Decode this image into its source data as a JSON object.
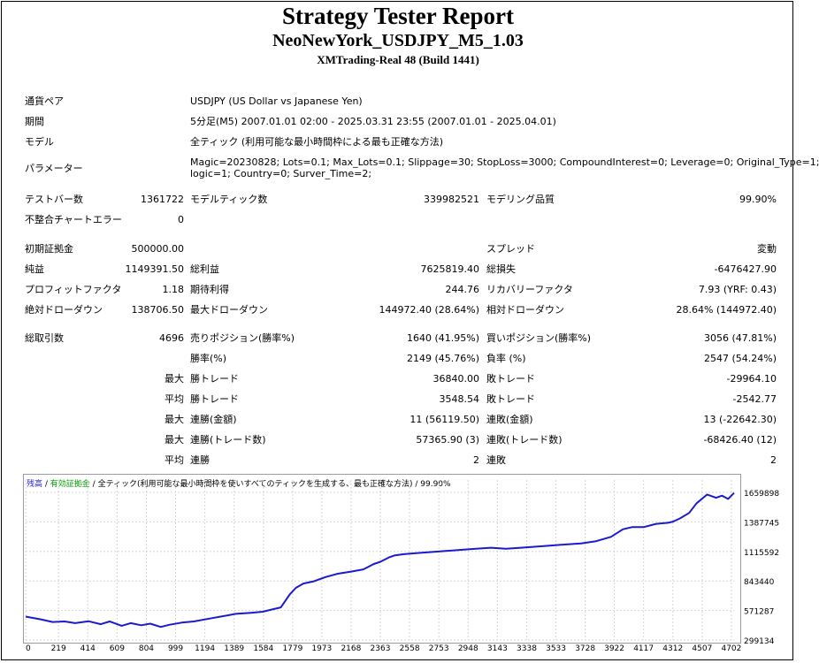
{
  "header": {
    "title": "Strategy Tester Report",
    "ea_name": "NeoNewYork_USDJPY_M5_1.03",
    "server": "XMTrading-Real 48 (Build 1441)"
  },
  "settings": {
    "symbol_label": "通貨ペア",
    "symbol_value": "USDJPY (US Dollar vs Japanese Yen)",
    "period_label": "期間",
    "period_value": "5分足(M5) 2007.01.01 02:00 - 2025.03.31 23:55 (2007.01.01 - 2025.04.01)",
    "model_label": "モデル",
    "model_value": "全ティック (利用可能な最小時間枠による最も正確な方法)",
    "params_label": "パラメーター",
    "params_line1": "Magic=20230828; Lots=0.1; Max_Lots=0.1; Slippage=30; StopLoss=3000; CompoundInterest=0; Leverage=0; Original_Type=1;",
    "params_line2": "logic=1; Country=0; Surver_Time=2;"
  },
  "stats": {
    "bars_label": "テストバー数",
    "bars_value": "1361722",
    "ticks_label": "モデルティック数",
    "ticks_value": "339982521",
    "quality_label": "モデリング品質",
    "quality_value": "99.90%",
    "errors_label": "不整合チャートエラー",
    "errors_value": "0",
    "deposit_label": "初期証拠金",
    "deposit_value": "500000.00",
    "spread_label": "スプレッド",
    "spread_value": "変動",
    "net_label": "純益",
    "net_value": "1149391.50",
    "gross_profit_label": "総利益",
    "gross_profit_value": "7625819.40",
    "gross_loss_label": "総損失",
    "gross_loss_value": "-6476427.90",
    "pf_label": "プロフィットファクタ",
    "pf_value": "1.18",
    "expected_label": "期待利得",
    "expected_value": "244.76",
    "recovery_label": "リカバリーファクタ",
    "recovery_value": "7.93 (YRF: 0.43)",
    "abs_dd_label": "絶対ドローダウン",
    "abs_dd_value": "138706.50",
    "max_dd_label": "最大ドローダウン",
    "max_dd_value": "144972.40 (28.64%)",
    "rel_dd_label": "相対ドローダウン",
    "rel_dd_value": "28.64% (144972.40)"
  },
  "trades": {
    "total_label": "総取引数",
    "total_value": "4696",
    "short_label": "売りポジション(勝率%)",
    "short_value": "1640 (41.95%)",
    "long_label": "買いポジション(勝率%)",
    "long_value": "3056 (47.81%)",
    "win_rate_label": "勝率(%)",
    "win_rate_value": "2149 (45.76%)",
    "loss_rate_label": "負率 (%)",
    "loss_rate_value": "2547 (54.24%)",
    "max_prefix": "最大",
    "avg_prefix": "平均",
    "largest_win_label": "勝トレード",
    "largest_win_value": "36840.00",
    "largest_loss_label": "敗トレード",
    "largest_loss_value": "-29964.10",
    "avg_win_label": "勝トレード",
    "avg_win_value": "3548.54",
    "avg_loss_label": "敗トレード",
    "avg_loss_value": "-2542.77",
    "max_cons_wins_label": "連勝(金額)",
    "max_cons_wins_value": "11 (56119.50)",
    "max_cons_losses_label": "連敗(金額)",
    "max_cons_losses_value": "13 (-22642.30)",
    "max_cons_profit_label": "連勝(トレード数)",
    "max_cons_profit_value": "57365.90 (3)",
    "max_cons_loss_label": "連敗(トレード数)",
    "max_cons_loss_value": "-68426.40 (12)",
    "avg_cons_wins_label": "連勝",
    "avg_cons_wins_value": "2",
    "avg_cons_losses_label": "連敗",
    "avg_cons_losses_value": "2"
  },
  "chart_legend": {
    "balance": "残高",
    "sep1": " / ",
    "equity": "有効証拠金",
    "sep2": " / ",
    "rest": "全ティック(利用可能な最小時間枠を使いすべてのティックを生成する、最も正確な方法) / 99.90%"
  },
  "chart_data": {
    "type": "line",
    "x_ticks": [
      "0",
      "219",
      "414",
      "609",
      "804",
      "999",
      "1194",
      "1389",
      "1584",
      "1779",
      "1973",
      "2168",
      "2363",
      "2558",
      "2753",
      "2948",
      "3143",
      "3338",
      "3533",
      "3728",
      "3922",
      "4117",
      "4312",
      "4507",
      "4702"
    ],
    "y_ticks": [
      "1659898",
      "1387745",
      "1115592",
      "843440",
      "571287",
      "299134"
    ],
    "xlim": [
      0,
      4720
    ],
    "ylim": [
      299134,
      1659898
    ],
    "series": [
      {
        "color": "#1a1acf",
        "x": [
          0,
          100,
          180,
          260,
          330,
          420,
          500,
          560,
          640,
          700,
          770,
          830,
          900,
          960,
          1040,
          1120,
          1240,
          1320,
          1400,
          1500,
          1580,
          1640,
          1700,
          1760,
          1800,
          1850,
          1920,
          2000,
          2080,
          2168,
          2250,
          2320,
          2363,
          2420,
          2460,
          2520,
          2600,
          2700,
          2800,
          2900,
          3000,
          3100,
          3200,
          3300,
          3400,
          3500,
          3600,
          3700,
          3800,
          3900,
          3980,
          4040,
          4117,
          4200,
          4280,
          4312,
          4360,
          4420,
          4470,
          4540,
          4600,
          4640,
          4680,
          4720
        ],
        "y": [
          515000,
          490000,
          465000,
          470000,
          455000,
          472000,
          445000,
          470000,
          430000,
          455000,
          435000,
          450000,
          420000,
          440000,
          460000,
          470000,
          500000,
          520000,
          540000,
          550000,
          560000,
          580000,
          600000,
          720000,
          780000,
          820000,
          840000,
          880000,
          910000,
          930000,
          950000,
          1000000,
          1020000,
          1060000,
          1080000,
          1090000,
          1100000,
          1110000,
          1120000,
          1130000,
          1140000,
          1150000,
          1140000,
          1150000,
          1160000,
          1170000,
          1180000,
          1190000,
          1210000,
          1250000,
          1320000,
          1340000,
          1340000,
          1370000,
          1380000,
          1390000,
          1420000,
          1470000,
          1560000,
          1640000,
          1610000,
          1630000,
          1600000,
          1655000
        ]
      }
    ]
  }
}
